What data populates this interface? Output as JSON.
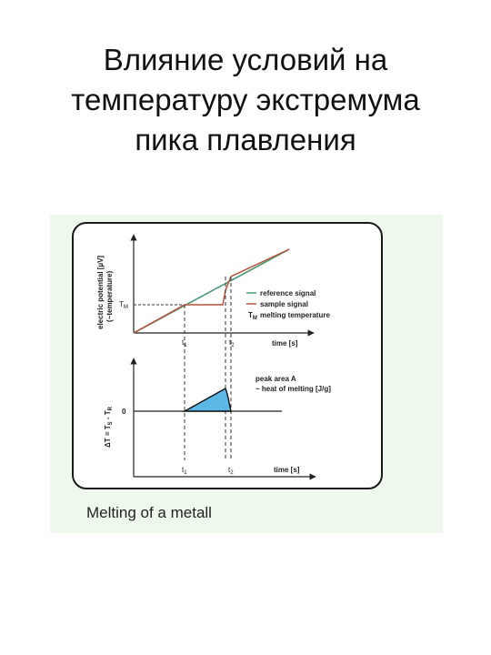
{
  "slide": {
    "title_lines": [
      "Влияние условий на",
      "температуру экстремума",
      "пика плавления"
    ]
  },
  "figure": {
    "top_plot": {
      "y_axis_label_1": "electric potential [µV]",
      "y_axis_label_2": "(~temperature)",
      "y_tick_label": "T",
      "y_tick_subscript": "M",
      "x_axis_label": "time [s]",
      "x_tick_labels": [
        "t",
        "t"
      ],
      "x_tick_subscripts": [
        "1",
        "2"
      ],
      "legend": {
        "reference_label": "reference signal",
        "sample_label": "sample signal",
        "tm_symbol": "T",
        "tm_subscript": "M",
        "tm_label": "melting temperature"
      }
    },
    "bottom_plot": {
      "y_axis_label": "ΔT = T",
      "y_axis_sub_1": "S",
      "y_axis_mid": " - T",
      "y_axis_sub_2": "R",
      "y_tick_label": "0",
      "x_axis_label": "time [s]",
      "x_tick_labels": [
        "t",
        "t"
      ],
      "x_tick_subscripts": [
        "1",
        "2"
      ],
      "annotation_line_1": "peak area A",
      "annotation_line_2": "~ heat of melting [J/g]"
    },
    "caption": "Melting of a metall",
    "colors": {
      "reference": "#4a9a72",
      "sample": "#b8503c",
      "peak_fill": "#5ab7e6",
      "panel_bg": "#eef8ec"
    }
  }
}
